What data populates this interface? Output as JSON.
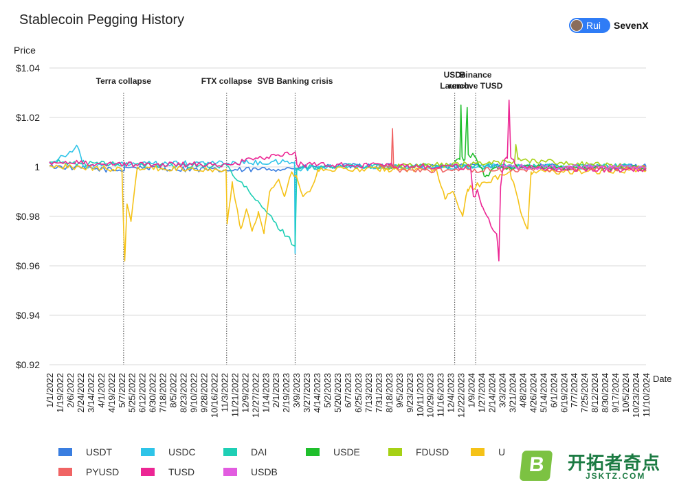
{
  "header": {
    "title": "Stablecoin Pegging History",
    "user": "Rui",
    "brand": "SevenX"
  },
  "watermark": {
    "text": "开拓者奇点",
    "url": "JSKTZ.COM",
    "letter": "B"
  },
  "chart_data": {
    "type": "line",
    "title": "Stablecoin Pegging History",
    "xlabel": "Date",
    "ylabel": "Price",
    "ylim": [
      0.92,
      1.04
    ],
    "yticks": [
      {
        "v": 1.04,
        "label": "$1.04"
      },
      {
        "v": 1.02,
        "label": "$1.02"
      },
      {
        "v": 1.0,
        "label": "1"
      },
      {
        "v": 0.98,
        "label": "$0.98"
      },
      {
        "v": 0.96,
        "label": "$0.96"
      },
      {
        "v": 0.94,
        "label": "$0.94"
      },
      {
        "v": 0.92,
        "label": "$0.92"
      }
    ],
    "grid": "horizontal",
    "x_range": [
      "2022-01-01",
      "2024-11-20"
    ],
    "x_ticks": [
      "1/1/2022",
      "1/19/2022",
      "2/6/2022",
      "2/24/2022",
      "3/14/2022",
      "4/1/2022",
      "4/19/2022",
      "5/7/2022",
      "5/25/2022",
      "6/12/2022",
      "6/30/2022",
      "7/18/2022",
      "8/5/2022",
      "8/23/2022",
      "9/10/2022",
      "9/28/2022",
      "10/16/2022",
      "11/3/2022",
      "11/21/2022",
      "12/9/2022",
      "12/27/2022",
      "1/14/2023",
      "2/1/2023",
      "2/19/2023",
      "3/9/2023",
      "3/27/2023",
      "4/14/2023",
      "5/2/2023",
      "5/20/2023",
      "6/7/2023",
      "6/25/2023",
      "7/13/2023",
      "7/31/2023",
      "8/18/2023",
      "9/5/2023",
      "9/23/2023",
      "10/11/2023",
      "10/29/2023",
      "11/16/2023",
      "12/4/2023",
      "12/22/2023",
      "1/9/2024",
      "1/27/2024",
      "2/14/2024",
      "3/3/2024",
      "3/21/2024",
      "4/8/2024",
      "4/26/2024",
      "5/14/2024",
      "6/1/2024",
      "6/19/2024",
      "7/7/2024",
      "7/25/2024",
      "8/12/2024",
      "8/30/2024",
      "9/17/2024",
      "10/5/2024",
      "10/23/2024",
      "11/10/2024"
    ],
    "events": [
      {
        "label": [
          "Terra collapse"
        ],
        "date": "2022-05-12"
      },
      {
        "label": [
          "FTX collapse"
        ],
        "date": "2022-11-10"
      },
      {
        "label": [
          "SVB Banking crisis"
        ],
        "date": "2023-03-11"
      },
      {
        "label": [
          "USDe",
          "Launch"
        ],
        "date": "2023-12-18"
      },
      {
        "label": [
          "Binance",
          "remove TUSD"
        ],
        "date": "2024-01-24"
      }
    ],
    "legend_position": "bottom",
    "series": [
      {
        "name": "USDT",
        "color": "#3a7ee0",
        "start": "2022-01-01",
        "points": [
          [
            "2022-01-01",
            1.0003
          ],
          [
            "2022-05-12",
            0.9985
          ],
          [
            "2022-05-14",
            1.0
          ],
          [
            "2022-11-10",
            0.9985
          ],
          [
            "2023-06-01",
            1.0003
          ],
          [
            "2024-11-20",
            1.0002
          ]
        ]
      },
      {
        "name": "USDC",
        "color": "#2ec4e8",
        "start": "2022-01-01",
        "points": [
          [
            "2022-01-01",
            1.0015
          ],
          [
            "2022-02-20",
            1.008
          ],
          [
            "2022-03-01",
            1.0005
          ],
          [
            "2022-05-12",
            1.001
          ],
          [
            "2023-03-10",
            1.002
          ],
          [
            "2023-03-11",
            0.965
          ],
          [
            "2023-03-13",
            0.999
          ],
          [
            "2023-06-01",
            1.0003
          ],
          [
            "2024-11-20",
            1.0001
          ]
        ]
      },
      {
        "name": "DAI",
        "color": "#1fcfb5",
        "start": "2022-01-01",
        "points": [
          [
            "2022-01-01",
            1.002
          ],
          [
            "2022-05-12",
            1.001
          ],
          [
            "2022-11-10",
            1.0005
          ],
          [
            "2023-03-11",
            0.968
          ],
          [
            "2023-03-14",
            0.9995
          ],
          [
            "2023-06-01",
            1.0003
          ],
          [
            "2024-11-20",
            1.0002
          ]
        ]
      },
      {
        "name": "USDE",
        "color": "#1fbf2c",
        "start": "2023-12-18",
        "points": [
          [
            "2023-12-18",
            1.002
          ],
          [
            "2023-12-27",
            1.003
          ],
          [
            "2023-12-29",
            1.025
          ],
          [
            "2023-12-31",
            1.004
          ],
          [
            "2024-01-05",
            1.003
          ],
          [
            "2024-01-09",
            1.024
          ],
          [
            "2024-01-11",
            1.005
          ],
          [
            "2024-01-24",
            1.004
          ],
          [
            "2024-02-10",
            0.996
          ],
          [
            "2024-03-01",
            1.0
          ],
          [
            "2024-11-20",
            0.9995
          ]
        ]
      },
      {
        "name": "FDUSD",
        "color": "#a6d115",
        "start": "2023-08-01",
        "points": [
          [
            "2023-08-01",
            1.0
          ],
          [
            "2024-01-01",
            1.001
          ],
          [
            "2024-04-02",
            1.002
          ],
          [
            "2024-04-04",
            1.009
          ],
          [
            "2024-04-08",
            1.003
          ],
          [
            "2024-11-20",
            0.9995
          ]
        ]
      },
      {
        "name": "U",
        "color": "#f5c217",
        "start": "2022-01-01",
        "points": [
          [
            "2022-01-01",
            1.0005
          ],
          [
            "2022-05-09",
            0.999
          ],
          [
            "2022-05-12",
            0.975
          ],
          [
            "2022-05-14",
            0.962
          ],
          [
            "2022-05-18",
            0.985
          ],
          [
            "2022-05-25",
            0.978
          ],
          [
            "2022-06-05",
            0.9995
          ],
          [
            "2022-11-09",
            0.999
          ],
          [
            "2022-11-11",
            0.977
          ],
          [
            "2022-11-20",
            0.994
          ],
          [
            "2022-12-05",
            0.975
          ],
          [
            "2022-12-15",
            0.983
          ],
          [
            "2022-12-25",
            0.974
          ],
          [
            "2023-01-05",
            0.982
          ],
          [
            "2023-01-15",
            0.973
          ],
          [
            "2023-01-25",
            0.99
          ],
          [
            "2023-02-10",
            0.995
          ],
          [
            "2023-02-20",
            0.988
          ],
          [
            "2023-03-05",
            0.998
          ],
          [
            "2023-03-15",
            0.995
          ],
          [
            "2023-03-25",
            0.988
          ],
          [
            "2023-04-10",
            0.992
          ],
          [
            "2023-04-20",
            0.999
          ],
          [
            "2023-11-15",
            0.999
          ],
          [
            "2023-12-01",
            0.987
          ],
          [
            "2023-12-15",
            0.99
          ],
          [
            "2024-01-01",
            0.98
          ],
          [
            "2024-01-10",
            0.991
          ],
          [
            "2024-03-25",
            0.998
          ],
          [
            "2024-04-15",
            0.98
          ],
          [
            "2024-04-25",
            0.975
          ],
          [
            "2024-05-01",
            0.998
          ],
          [
            "2024-11-20",
            0.9985
          ]
        ]
      },
      {
        "name": "PYUSD",
        "color": "#f06464",
        "start": "2023-08-07",
        "points": [
          [
            "2023-08-07",
            1.0
          ],
          [
            "2023-08-28",
            1.0
          ],
          [
            "2023-08-30",
            1.0155
          ],
          [
            "2023-09-01",
            1.0
          ],
          [
            "2023-09-10",
            0.9985
          ],
          [
            "2024-11-20",
            0.9995
          ]
        ]
      },
      {
        "name": "TUSD",
        "color": "#ec2694",
        "start": "2022-01-01",
        "points": [
          [
            "2022-01-01",
            1.002
          ],
          [
            "2022-05-12",
            1.001
          ],
          [
            "2022-11-10",
            1.001
          ],
          [
            "2023-03-11",
            1.006
          ],
          [
            "2023-03-14",
            1.001
          ],
          [
            "2024-01-15",
            1.0
          ],
          [
            "2024-01-20",
            0.988
          ],
          [
            "2024-01-28",
            0.99
          ],
          [
            "2024-02-05",
            0.984
          ],
          [
            "2024-02-20",
            0.976
          ],
          [
            "2024-03-01",
            0.973
          ],
          [
            "2024-03-05",
            0.962
          ],
          [
            "2024-03-08",
            0.992
          ],
          [
            "2024-03-15",
            1.003
          ],
          [
            "2024-03-20",
            1.0035
          ],
          [
            "2024-03-23",
            1.027
          ],
          [
            "2024-03-26",
            1.004
          ],
          [
            "2024-04-05",
            1.0
          ],
          [
            "2024-11-20",
            0.9985
          ]
        ]
      },
      {
        "name": "USDB",
        "color": "#e25ce0",
        "start": "2024-03-01",
        "points": [
          [
            "2024-03-01",
            1.0
          ],
          [
            "2024-11-20",
            1.0
          ]
        ]
      }
    ]
  }
}
